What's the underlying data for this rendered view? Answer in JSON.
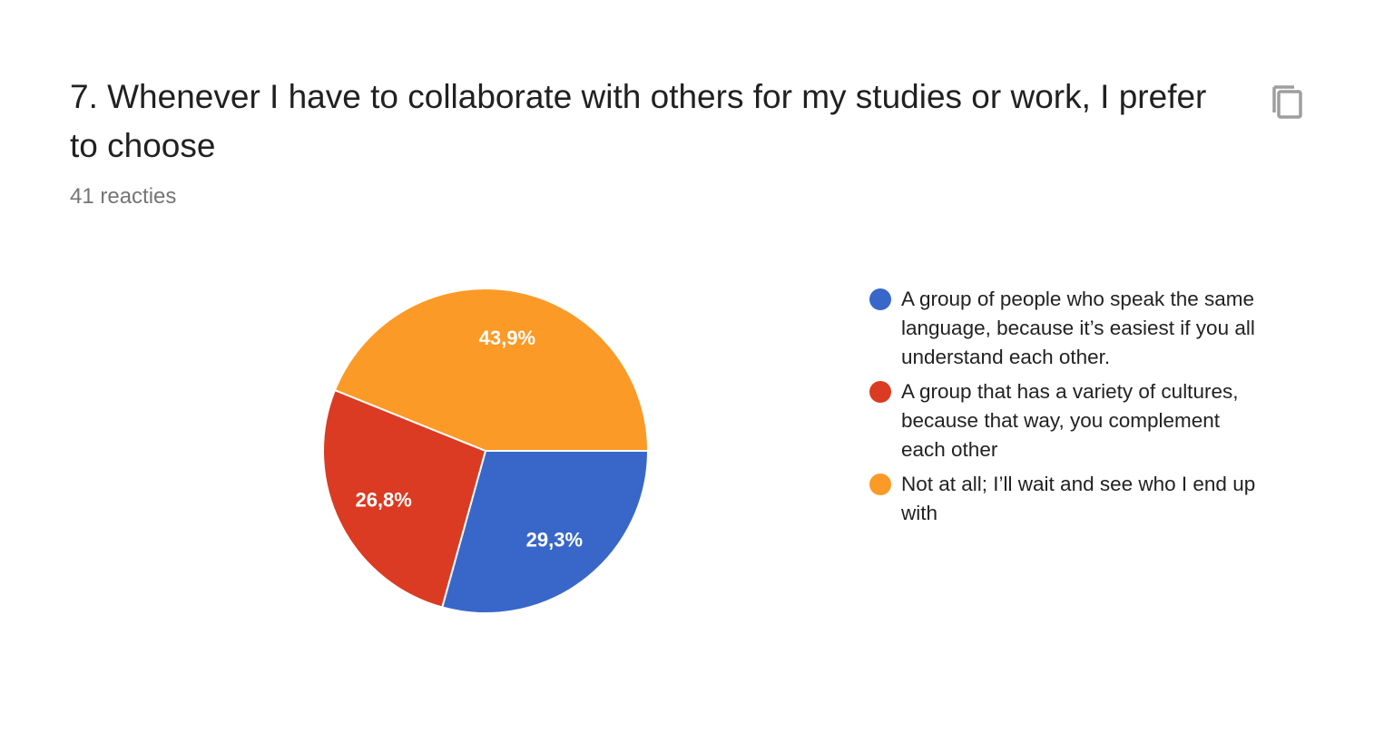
{
  "chart_data": {
    "type": "pie",
    "title": "7. Whenever I have to collaborate with others for my studies or work, I prefer to choose",
    "subtitle": "41 reacties",
    "categories": [
      "A group of people who speak the same language, because it’s easiest if you all understand each other.",
      "A group that has a variety of cultures, because that way, you complement each other",
      "Not at all; I’ll wait and see who I end up with"
    ],
    "values": [
      29.3,
      26.8,
      43.9
    ],
    "value_labels": [
      "29,3%",
      "26,8%",
      "43,9%"
    ],
    "colors": [
      "#3867c9",
      "#db3b22",
      "#fb9a27"
    ],
    "legend": "right"
  }
}
